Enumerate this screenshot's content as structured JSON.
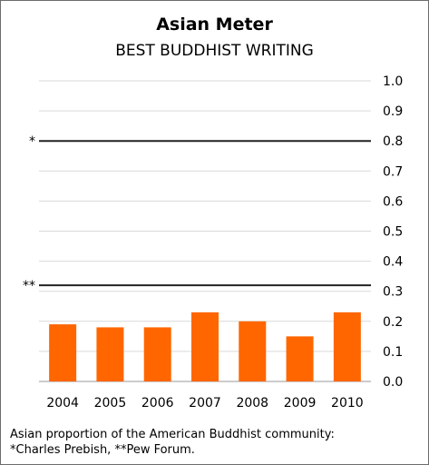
{
  "title": "Asian Meter",
  "subtitle": "BEST BUDDHIST WRITING",
  "footnote": {
    "line1": "Asian proportion of the American Buddhist community:",
    "line2": "*Charles Prebish, **Pew Forum."
  },
  "colors": {
    "bar": "#ff6600",
    "grid": "#d9d9d9",
    "reference": "#222222",
    "text": "#000000",
    "border": "#6d6d6d"
  },
  "chart_data": {
    "type": "bar",
    "title": "Asian Meter",
    "subtitle": "BEST BUDDHIST WRITING",
    "categories": [
      "2004",
      "2005",
      "2006",
      "2007",
      "2008",
      "2009",
      "2010"
    ],
    "values": [
      0.19,
      0.18,
      0.18,
      0.23,
      0.2,
      0.15,
      0.23
    ],
    "ylim": [
      0,
      1.0
    ],
    "yticks": [
      "1.0",
      "0.9",
      "0.8",
      "0.7",
      "0.6",
      "0.5",
      "0.4",
      "0.3",
      "0.2",
      "0.1",
      "0.0"
    ],
    "y_axis_position": "right",
    "grid": true,
    "reference_lines": [
      {
        "value": 0.8,
        "label": "*"
      },
      {
        "value": 0.32,
        "label": "**"
      }
    ]
  }
}
